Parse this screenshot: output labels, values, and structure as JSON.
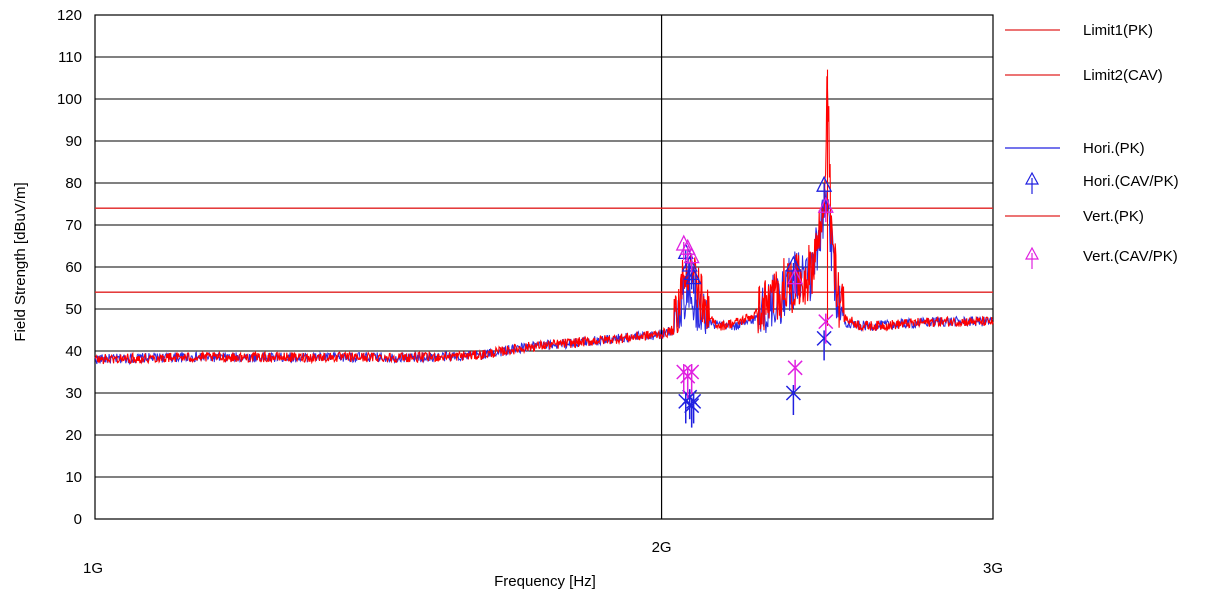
{
  "chart_data": {
    "type": "line",
    "xlabel": "Frequency [Hz]",
    "ylabel": "Field Strength [dBuV/m]",
    "x_scale": "log",
    "xlim": [
      1000000000,
      3000000000
    ],
    "ylim": [
      0,
      120
    ],
    "x_tick_labels": [
      "1G",
      "2G",
      "3G"
    ],
    "x_tick_values": [
      1000000000,
      2000000000,
      3000000000
    ],
    "y_ticks": [
      0,
      10,
      20,
      30,
      40,
      50,
      60,
      70,
      80,
      90,
      100,
      110,
      120
    ],
    "grid": true,
    "legend_position": "right",
    "limits": [
      {
        "name": "Limit1(PK)",
        "value": 74,
        "color": "#e02020"
      },
      {
        "name": "Limit2(CAV)",
        "value": 54,
        "color": "#e02020"
      }
    ],
    "series": [
      {
        "name": "Hori.(PK)",
        "color": "#2020e0",
        "x": [
          1000000000,
          1100000000,
          1200000000,
          1300000000,
          1400000000,
          1500000000,
          1600000000,
          1700000000,
          1800000000,
          1900000000,
          2000000000,
          2030000000,
          2050000000,
          2070000000,
          2090000000,
          2110000000,
          2150000000,
          2200000000,
          2250000000,
          2300000000,
          2330000000,
          2360000000,
          2380000000,
          2400000000,
          2420000000,
          2440000000,
          2450000000,
          2460000000,
          2480000000,
          2500000000,
          2550000000,
          2600000000,
          2700000000,
          2800000000,
          2900000000,
          3000000000
        ],
        "y": [
          38,
          38.5,
          38.5,
          38.5,
          38.5,
          38.5,
          39,
          41,
          42,
          43,
          44,
          45,
          52,
          57,
          50,
          47,
          46,
          46,
          48,
          52,
          55,
          58,
          56,
          58,
          64,
          71,
          78,
          65,
          52,
          47,
          46,
          46,
          46.5,
          47,
          47,
          47
        ]
      },
      {
        "name": "Vert.(PK)",
        "color": "#ff0000",
        "x": [
          1000000000,
          1100000000,
          1200000000,
          1300000000,
          1400000000,
          1500000000,
          1600000000,
          1700000000,
          1800000000,
          1900000000,
          2000000000,
          2030000000,
          2050000000,
          2070000000,
          2090000000,
          2110000000,
          2150000000,
          2200000000,
          2250000000,
          2300000000,
          2330000000,
          2360000000,
          2380000000,
          2400000000,
          2420000000,
          2440000000,
          2450000000,
          2460000000,
          2480000000,
          2500000000,
          2550000000,
          2600000000,
          2700000000,
          2800000000,
          2900000000,
          3000000000
        ],
        "y": [
          38,
          38.5,
          38.5,
          38.5,
          38.5,
          38.5,
          39,
          41,
          42,
          43,
          44,
          45,
          55,
          62,
          55,
          48,
          46,
          47,
          49,
          53,
          56,
          56,
          57,
          59,
          66,
          73,
          107,
          70,
          54,
          48,
          46,
          46,
          46.5,
          47,
          47,
          47
        ]
      }
    ],
    "markers": [
      {
        "name": "Hori.(CAV/PK)",
        "color": "#2020e0",
        "points": [
          {
            "x": 2060000000,
            "pk": 63,
            "cav": 28
          },
          {
            "x": 2070000000,
            "pk": 60,
            "cav": 29
          },
          {
            "x": 2075000000,
            "pk": 58,
            "cav": 27
          },
          {
            "x": 2080000000,
            "pk": 57,
            "cav": 28
          },
          {
            "x": 2350000000,
            "pk": 60,
            "cav": 30
          },
          {
            "x": 2440000000,
            "pk": 79,
            "cav": 43
          }
        ]
      },
      {
        "name": "Vert.(CAV/PK)",
        "color": "#e020e0",
        "points": [
          {
            "x": 2055000000,
            "pk": 65,
            "cav": 35
          },
          {
            "x": 2065000000,
            "pk": 64,
            "cav": 34
          },
          {
            "x": 2075000000,
            "pk": 62,
            "cav": 35
          },
          {
            "x": 2355000000,
            "pk": 57,
            "cav": 36
          },
          {
            "x": 2445000000,
            "pk": 74,
            "cav": 47
          }
        ]
      }
    ],
    "legend": [
      {
        "label": "Limit1(PK)",
        "kind": "line",
        "color": "#e02020"
      },
      {
        "label": "Limit2(CAV)",
        "kind": "line",
        "color": "#e02020"
      },
      {
        "label": "Hori.(PK)",
        "kind": "line",
        "color": "#2020e0"
      },
      {
        "label": "Hori.(CAV/PK)",
        "kind": "marker",
        "color": "#2020e0"
      },
      {
        "label": "Vert.(PK)",
        "kind": "line",
        "color": "#e02020"
      },
      {
        "label": "Vert.(CAV/PK)",
        "kind": "marker",
        "color": "#e020e0"
      }
    ]
  }
}
